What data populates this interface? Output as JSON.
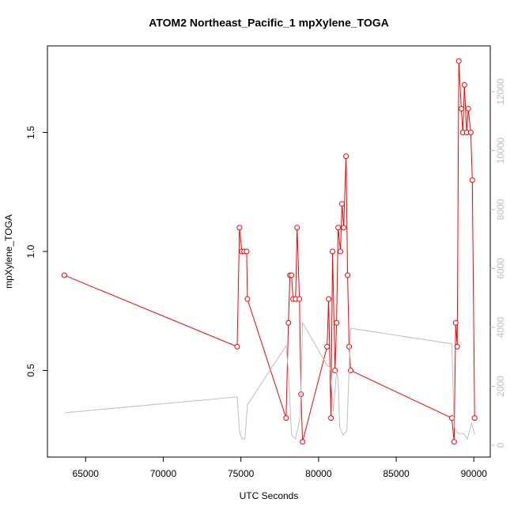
{
  "chart_data": {
    "type": "line",
    "title": "ATOM2 Northeast_Pacific_1 mpXylene_TOGA",
    "xlabel": "UTC Seconds",
    "ylabel": "mpXylene_TOGA",
    "xlim": [
      62544,
      91056
    ],
    "ylim": [
      0.136,
      1.864
    ],
    "y2lim": [
      -403,
      13557
    ],
    "xticks": [
      65000,
      70000,
      75000,
      80000,
      85000,
      90000
    ],
    "yticks": [
      0.5,
      {
        "value": 1,
        "label": "1.0"
      },
      1.5
    ],
    "y2ticks": [
      0,
      2000,
      4000,
      6000,
      8000,
      10000,
      12000
    ],
    "y2tick_color": "#bebebe",
    "series": [
      {
        "color": "#ff0000",
        "marker": "circle",
        "x": [
          63630,
          74760,
          74910,
          75060,
          75210,
          75370,
          75420,
          77910,
          78060,
          78160,
          78260,
          78360,
          78520,
          78620,
          78770,
          78870,
          78970,
          80550,
          80650,
          80800,
          80900,
          81060,
          81160,
          81260,
          81410,
          81510,
          81620,
          81770,
          81870,
          81970,
          82070,
          88580,
          88730,
          88830,
          88930,
          89030,
          89190,
          89290,
          89390,
          89540,
          89640,
          89800,
          89900,
          90050
        ],
        "values": [
          0.9,
          0.6,
          1.1,
          1.0,
          1.0,
          1.0,
          0.8,
          0.3,
          0.7,
          0.9,
          0.9,
          0.8,
          0.8,
          1.1,
          0.8,
          0.4,
          0.2,
          0.6,
          0.8,
          0.3,
          1.0,
          0.5,
          0.7,
          1.1,
          1.0,
          1.2,
          1.1,
          1.4,
          0.9,
          0.6,
          0.5,
          0.3,
          0.2,
          0.7,
          0.6,
          1.8,
          1.6,
          1.5,
          1.7,
          1.5,
          1.6,
          1.5,
          1.3,
          0.3
        ]
      },
      {
        "color": "#bebebe",
        "axis": "y2",
        "x": [
          63630,
          74760,
          74910,
          75060,
          75260,
          75420,
          77910,
          78060,
          78260,
          78520,
          78820,
          78970,
          80550,
          80750,
          80950,
          81160,
          81260,
          81360,
          81570,
          81820,
          82070,
          88580,
          88730,
          88980,
          89340,
          89590,
          89850,
          90050
        ],
        "values": [
          1100,
          1640,
          480,
          215,
          215,
          1370,
          3380,
          2500,
          350,
          215,
          970,
          4160,
          2710,
          2630,
          1150,
          2500,
          2230,
          620,
          350,
          480,
          3970,
          3440,
          620,
          400,
          400,
          215,
          750,
          350
        ]
      }
    ]
  }
}
